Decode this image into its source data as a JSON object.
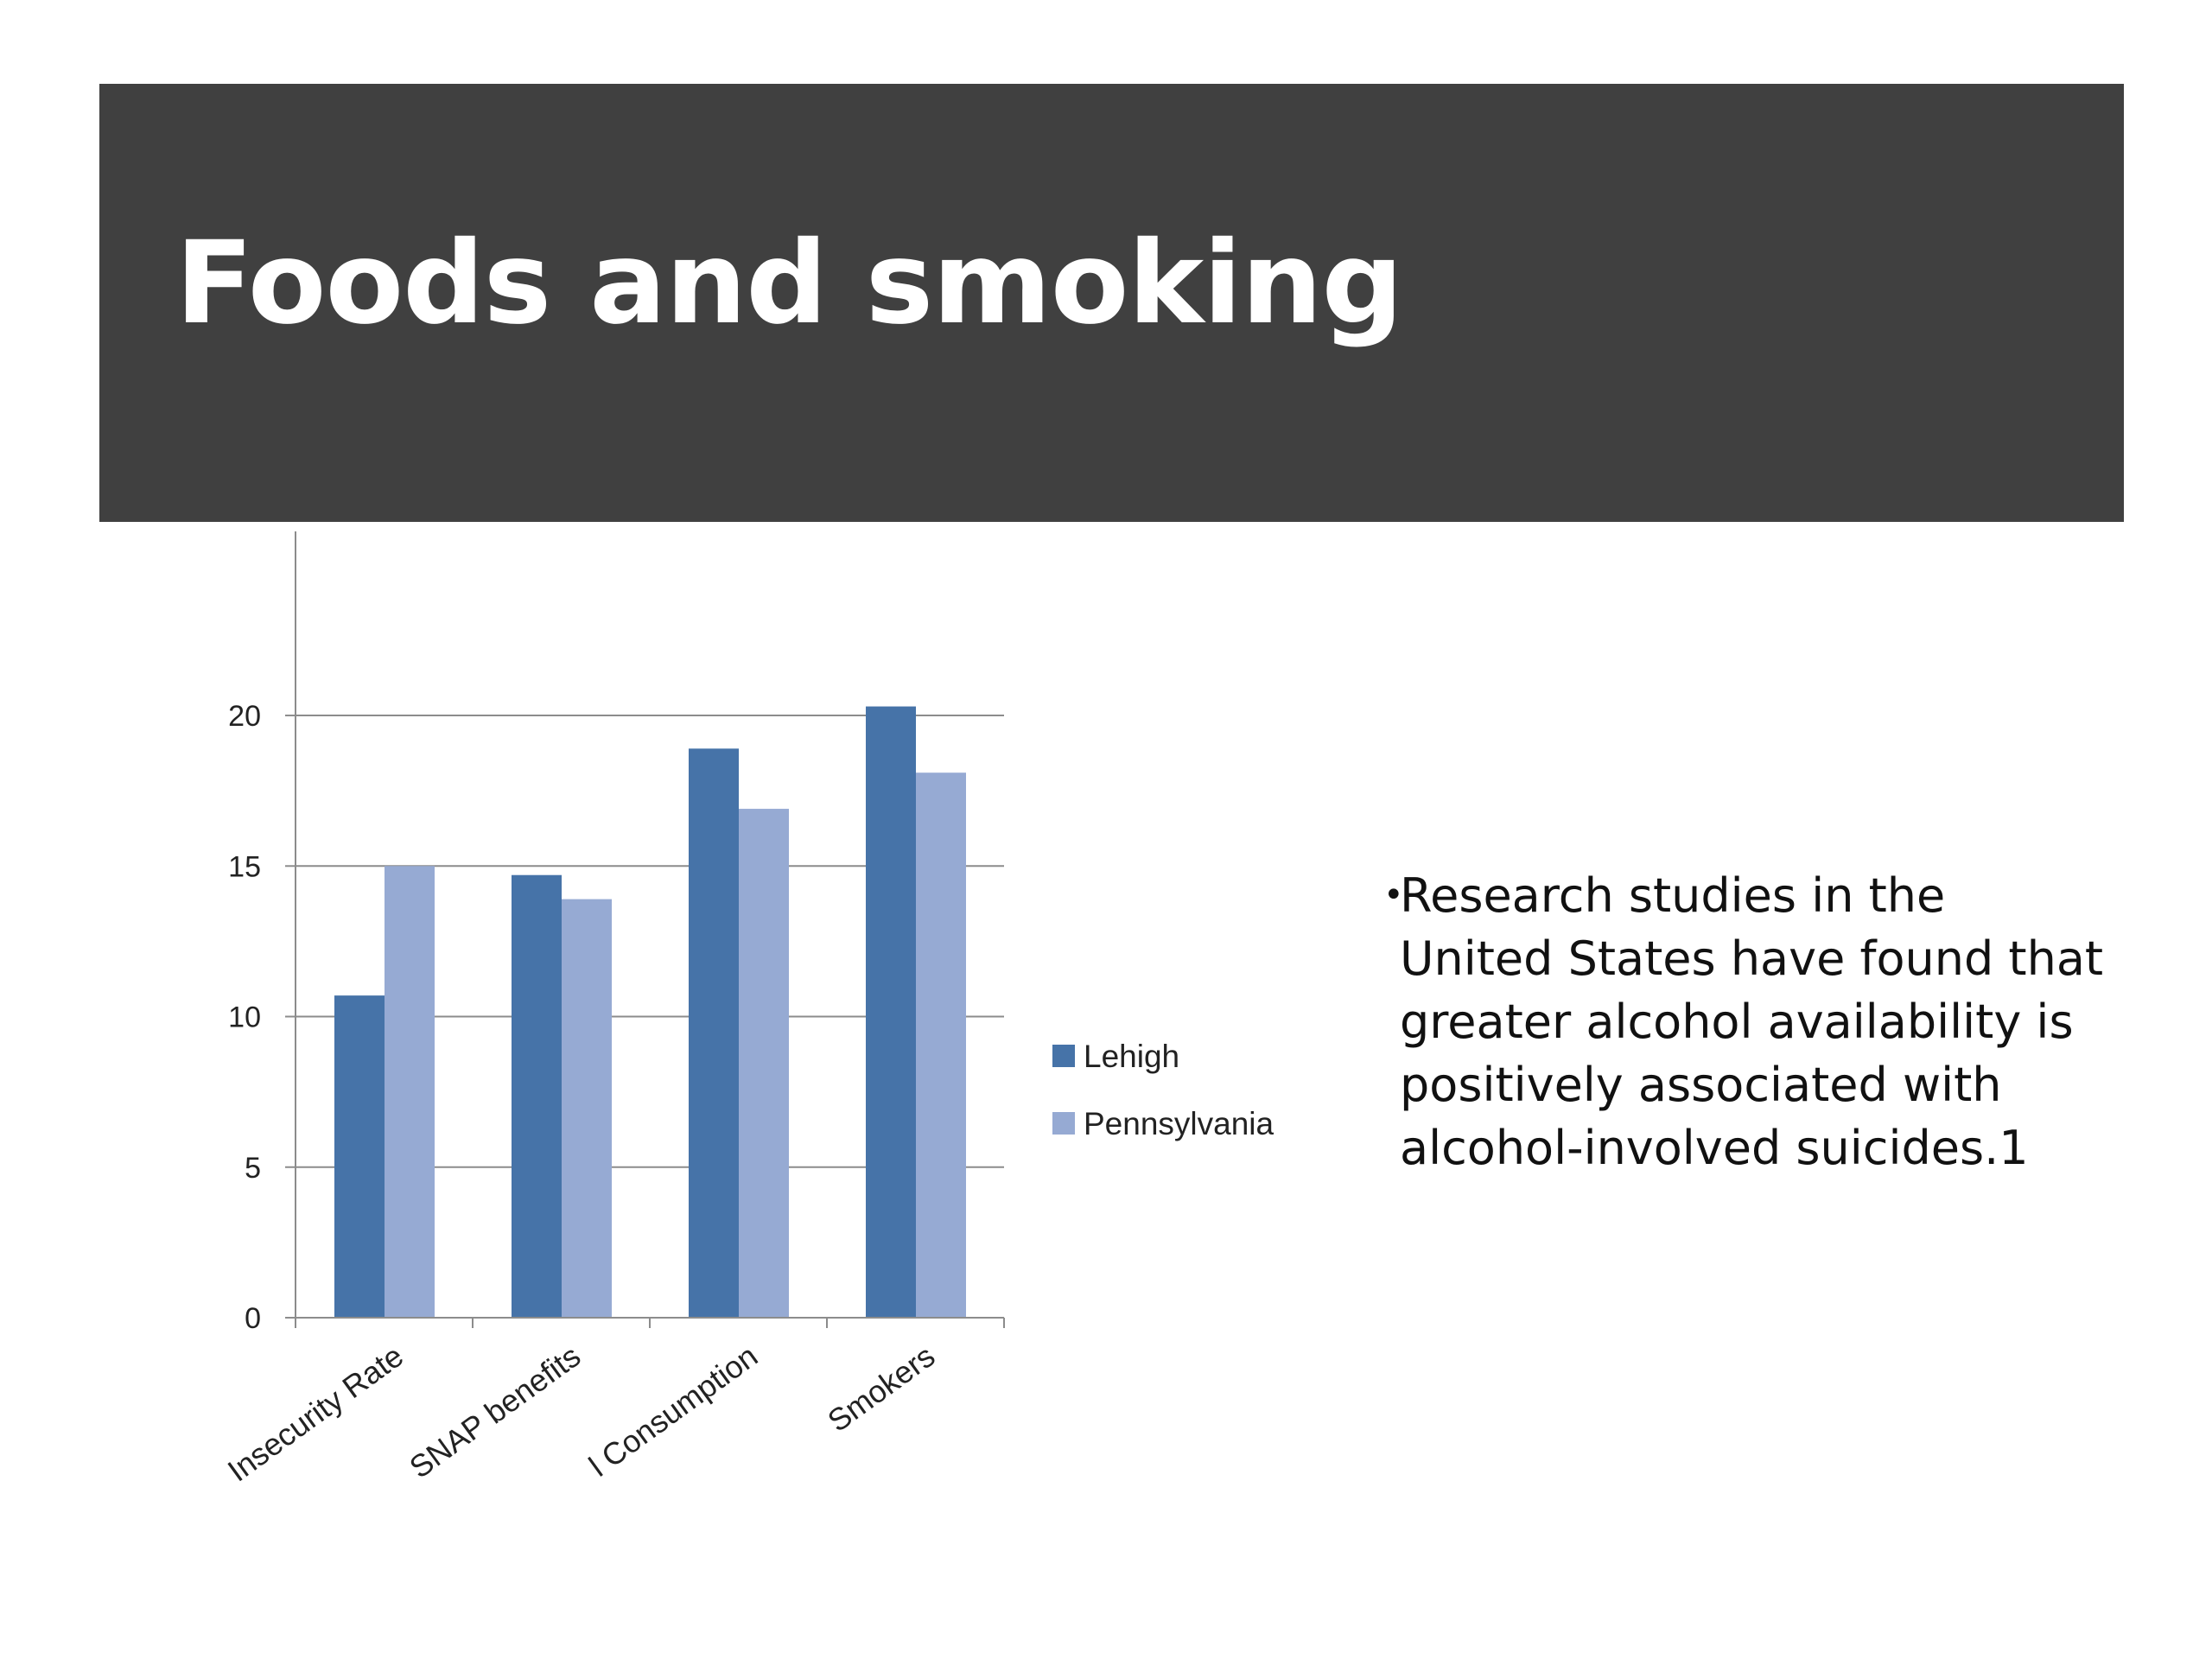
{
  "slide": {
    "title": "Foods and smoking",
    "bullets": [
      "Research studies in the United States have found that greater alcohol availability is positively associated with alcohol-involved suicides.1"
    ],
    "bullet_symbol": "•",
    "colors": {
      "title_bar": "#404040",
      "title_text": "#ffffff"
    }
  },
  "chart_data": {
    "type": "bar",
    "categories": [
      "Insecurity Rate",
      "SNAP benefits",
      "l Consumption",
      "Smokers"
    ],
    "series": [
      {
        "name": "Lehigh",
        "color": "#4673A8",
        "values": [
          10.7,
          14.7,
          18.9,
          20.3
        ]
      },
      {
        "name": "Pennsylvania",
        "color": "#96AAD3",
        "values": [
          15.0,
          13.9,
          16.9,
          18.1
        ]
      }
    ],
    "ylim": [
      0,
      23.1
    ],
    "yticks": [
      0,
      5,
      10,
      15,
      20
    ],
    "grid": true,
    "legend": "right",
    "title": "",
    "xlabel": "",
    "ylabel": ""
  }
}
